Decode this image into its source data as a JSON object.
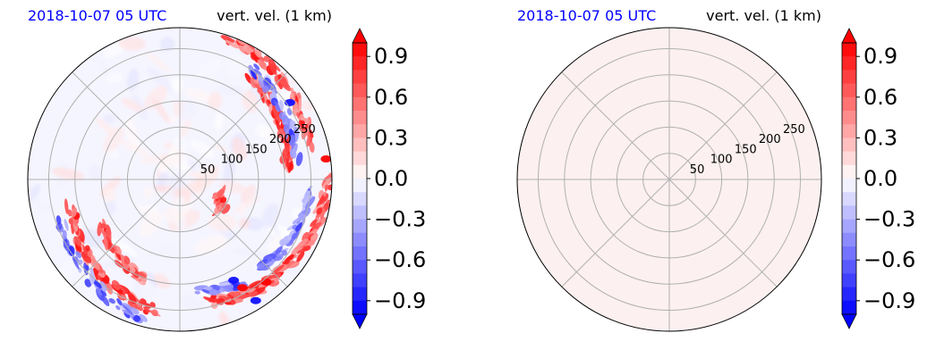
{
  "colors": {
    "date_label": "#0000ff",
    "positive": "#ff0000",
    "negative": "#0000ff",
    "grid": "#b0b0b0",
    "zero_fill": "#fdf0f0"
  },
  "chart_data": [
    {
      "type": "heatmap",
      "projection": "polar",
      "title_left": "2018-10-07 05 UTC",
      "title_right": "vert. vel. (1 km)",
      "radial_ticks": [
        50,
        100,
        150,
        200,
        250
      ],
      "r_max": 290,
      "angular_grid_deg": [
        0,
        45,
        90,
        135,
        180,
        225,
        270,
        315
      ],
      "field_description": "convergence-line bands of strong positive/negative values in the east and southern sectors; near-zero elsewhere",
      "colorbar": {
        "vmin": -1.0,
        "vmax": 1.0,
        "levels": 20,
        "extend": "both",
        "ticks": [
          0.9,
          0.6,
          0.3,
          0.0,
          -0.3,
          -0.6,
          -0.9
        ],
        "tick_labels": [
          "0.9",
          "0.6",
          "0.3",
          "0.0",
          "−0.3",
          "−0.6",
          "−0.9"
        ],
        "cmap": "bwr"
      }
    },
    {
      "type": "heatmap",
      "projection": "polar",
      "title_left": "2018-10-07 05 UTC",
      "title_right": "vert. vel. (1 km)",
      "radial_ticks": [
        50,
        100,
        150,
        200,
        250
      ],
      "r_max": 290,
      "angular_grid_deg": [
        0,
        45,
        90,
        135,
        180,
        225,
        270,
        315
      ],
      "field_value": 0.02,
      "colorbar": {
        "vmin": -1.0,
        "vmax": 1.0,
        "levels": 20,
        "extend": "both",
        "ticks": [
          0.9,
          0.6,
          0.3,
          0.0,
          -0.3,
          -0.6,
          -0.9
        ],
        "tick_labels": [
          "0.9",
          "0.6",
          "0.3",
          "0.0",
          "−0.3",
          "−0.6",
          "−0.9"
        ],
        "cmap": "bwr"
      }
    }
  ]
}
